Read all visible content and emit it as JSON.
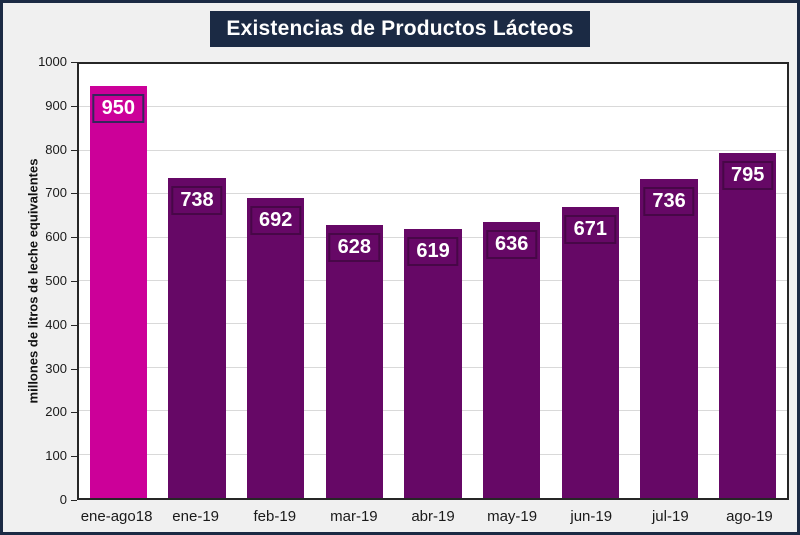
{
  "title": "Existencias de Productos Lácteos",
  "chart_data": {
    "type": "bar",
    "title": "Existencias de Productos Lácteos",
    "categories": [
      "ene-ago18",
      "ene-19",
      "feb-19",
      "mar-19",
      "abr-19",
      "may-19",
      "jun-19",
      "jul-19",
      "ago-19"
    ],
    "values": [
      950,
      738,
      692,
      628,
      619,
      636,
      671,
      736,
      795
    ],
    "xlabel": "",
    "ylabel": "millones de litros de leche equivalentes",
    "ylim": [
      0,
      1000
    ],
    "ytick_step": 100,
    "grid": true,
    "legend": false,
    "data_labels": true,
    "highlight_index": 0
  },
  "colors": {
    "background": "#f0f0f0",
    "frame_border": "#1b2a44",
    "title_bg": "#1b2a44",
    "title_text": "#ffffff",
    "plot_bg": "#ffffff",
    "plot_border": "#262626",
    "gridline": "#d9d9d9",
    "axis_text": "#1a1a1a",
    "bar_default": "#660866",
    "bar_default_label_border": "#470747",
    "bar_highlight": "#cc0099",
    "bar_highlight_label_border": "#35265c",
    "bar_label_text": "#ffffff"
  }
}
